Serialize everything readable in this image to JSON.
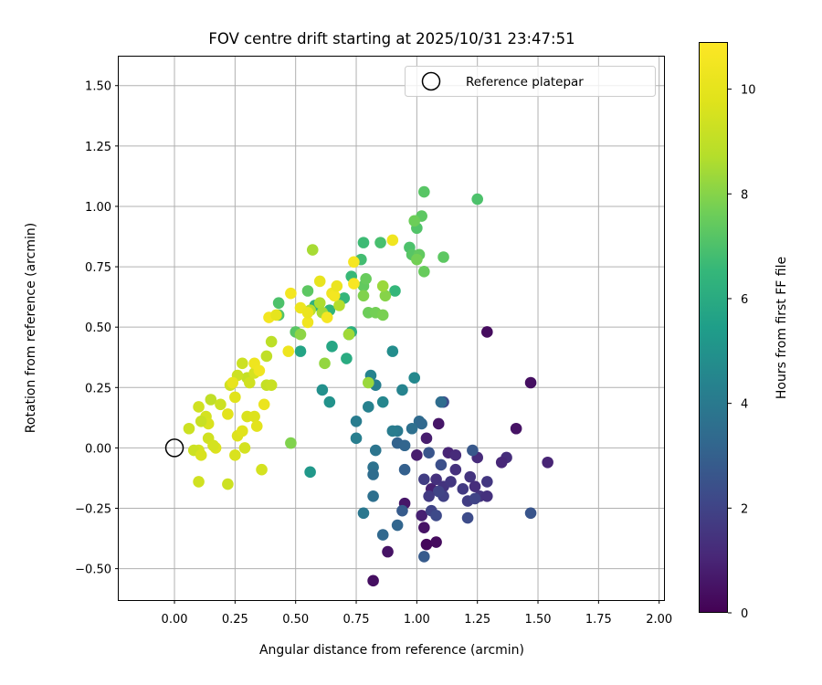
{
  "chart_data": {
    "type": "scatter",
    "title": "FOV centre drift starting at 2025/10/31 23:47:51",
    "xlabel": "Angular distance from reference (arcmin)",
    "ylabel": "Rotation from reference (arcmin)",
    "xlim": [
      -0.23,
      2.02
    ],
    "ylim": [
      -0.63,
      1.62
    ],
    "xticks": [
      0.0,
      0.25,
      0.5,
      0.75,
      1.0,
      1.25,
      1.5,
      1.75,
      2.0
    ],
    "xtick_labels": [
      "0.00",
      "0.25",
      "0.50",
      "0.75",
      "1.00",
      "1.25",
      "1.50",
      "1.75",
      "2.00"
    ],
    "yticks": [
      -0.5,
      -0.25,
      0.0,
      0.25,
      0.5,
      0.75,
      1.0,
      1.25,
      1.5
    ],
    "ytick_labels": [
      "−0.50",
      "−0.25",
      "0.00",
      "0.25",
      "0.50",
      "0.75",
      "1.00",
      "1.25",
      "1.50"
    ],
    "grid": true,
    "legend": {
      "label": "Reference platepar",
      "position": "top-right",
      "marker": "open-circle"
    },
    "reference_point": {
      "x": 0.0,
      "y": 0.0
    },
    "colorbar": {
      "label": "Hours from first FF file",
      "colormap": "viridis",
      "range": [
        0,
        10.9
      ],
      "ticks": [
        0,
        2,
        4,
        6,
        8,
        10
      ],
      "tick_labels": [
        "0",
        "2",
        "4",
        "6",
        "8",
        "10"
      ]
    },
    "points": [
      {
        "x": 1.04,
        "y": -0.4,
        "h": 0.2
      },
      {
        "x": 1.08,
        "y": -0.39,
        "h": 0.3
      },
      {
        "x": 0.82,
        "y": -0.55,
        "h": 0.4
      },
      {
        "x": 0.88,
        "y": -0.43,
        "h": 0.5
      },
      {
        "x": 1.03,
        "y": -0.33,
        "h": 0.5
      },
      {
        "x": 0.95,
        "y": -0.23,
        "h": 0.6
      },
      {
        "x": 1.29,
        "y": 0.48,
        "h": 0.3
      },
      {
        "x": 1.47,
        "y": 0.27,
        "h": 0.4
      },
      {
        "x": 1.41,
        "y": 0.08,
        "h": 0.5
      },
      {
        "x": 1.09,
        "y": 0.1,
        "h": 0.6
      },
      {
        "x": 1.04,
        "y": 0.04,
        "h": 0.8
      },
      {
        "x": 1.0,
        "y": -0.03,
        "h": 0.8
      },
      {
        "x": 1.06,
        "y": -0.17,
        "h": 0.9
      },
      {
        "x": 1.13,
        "y": -0.02,
        "h": 1.0
      },
      {
        "x": 1.16,
        "y": -0.03,
        "h": 1.2
      },
      {
        "x": 1.25,
        "y": -0.04,
        "h": 1.2
      },
      {
        "x": 1.37,
        "y": -0.04,
        "h": 1.3
      },
      {
        "x": 1.35,
        "y": -0.06,
        "h": 1.1
      },
      {
        "x": 1.54,
        "y": -0.06,
        "h": 1.0
      },
      {
        "x": 1.08,
        "y": -0.13,
        "h": 1.4
      },
      {
        "x": 1.11,
        "y": -0.16,
        "h": 1.5
      },
      {
        "x": 1.14,
        "y": -0.14,
        "h": 1.6
      },
      {
        "x": 1.16,
        "y": -0.09,
        "h": 1.4
      },
      {
        "x": 1.19,
        "y": -0.17,
        "h": 1.7
      },
      {
        "x": 1.22,
        "y": -0.12,
        "h": 1.5
      },
      {
        "x": 1.24,
        "y": -0.16,
        "h": 1.3
      },
      {
        "x": 1.26,
        "y": -0.2,
        "h": 1.5
      },
      {
        "x": 1.29,
        "y": -0.2,
        "h": 1.4
      },
      {
        "x": 1.29,
        "y": -0.14,
        "h": 1.6
      },
      {
        "x": 1.21,
        "y": -0.22,
        "h": 1.8
      },
      {
        "x": 1.11,
        "y": -0.2,
        "h": 1.9
      },
      {
        "x": 1.09,
        "y": -0.18,
        "h": 2.0
      },
      {
        "x": 1.05,
        "y": -0.2,
        "h": 1.7
      },
      {
        "x": 1.03,
        "y": -0.13,
        "h": 1.8
      },
      {
        "x": 1.02,
        "y": -0.28,
        "h": 0.9
      },
      {
        "x": 1.06,
        "y": -0.26,
        "h": 2.0
      },
      {
        "x": 1.08,
        "y": -0.28,
        "h": 2.2
      },
      {
        "x": 1.21,
        "y": -0.29,
        "h": 2.3
      },
      {
        "x": 1.24,
        "y": -0.21,
        "h": 2.0
      },
      {
        "x": 1.11,
        "y": 0.19,
        "h": 2.3
      },
      {
        "x": 1.1,
        "y": -0.07,
        "h": 2.4
      },
      {
        "x": 1.05,
        "y": -0.02,
        "h": 2.6
      },
      {
        "x": 1.23,
        "y": -0.01,
        "h": 2.7
      },
      {
        "x": 1.47,
        "y": -0.27,
        "h": 2.6
      },
      {
        "x": 1.03,
        "y": -0.45,
        "h": 2.8
      },
      {
        "x": 0.94,
        "y": -0.26,
        "h": 2.8
      },
      {
        "x": 0.95,
        "y": -0.09,
        "h": 3.0
      },
      {
        "x": 0.92,
        "y": 0.02,
        "h": 3.1
      },
      {
        "x": 0.95,
        "y": 0.01,
        "h": 3.2
      },
      {
        "x": 0.92,
        "y": -0.32,
        "h": 3.2
      },
      {
        "x": 0.86,
        "y": -0.36,
        "h": 3.3
      },
      {
        "x": 1.01,
        "y": 0.11,
        "h": 3.4
      },
      {
        "x": 1.02,
        "y": 0.1,
        "h": 3.3
      },
      {
        "x": 1.1,
        "y": 0.19,
        "h": 3.5
      },
      {
        "x": 0.98,
        "y": 0.08,
        "h": 3.6
      },
      {
        "x": 0.82,
        "y": -0.08,
        "h": 3.7
      },
      {
        "x": 0.82,
        "y": -0.11,
        "h": 3.5
      },
      {
        "x": 0.82,
        "y": -0.2,
        "h": 3.6
      },
      {
        "x": 0.83,
        "y": -0.01,
        "h": 3.8
      },
      {
        "x": 0.78,
        "y": -0.27,
        "h": 3.9
      },
      {
        "x": 0.92,
        "y": 0.07,
        "h": 4.0
      },
      {
        "x": 0.9,
        "y": 0.07,
        "h": 4.1
      },
      {
        "x": 0.75,
        "y": 0.04,
        "h": 4.2
      },
      {
        "x": 0.75,
        "y": 0.11,
        "h": 4.1
      },
      {
        "x": 0.8,
        "y": 0.17,
        "h": 4.3
      },
      {
        "x": 0.81,
        "y": 0.3,
        "h": 4.4
      },
      {
        "x": 0.83,
        "y": 0.26,
        "h": 4.2
      },
      {
        "x": 0.86,
        "y": 0.19,
        "h": 4.5
      },
      {
        "x": 0.94,
        "y": 0.24,
        "h": 4.4
      },
      {
        "x": 0.99,
        "y": 0.29,
        "h": 4.6
      },
      {
        "x": 0.9,
        "y": 0.4,
        "h": 4.8
      },
      {
        "x": 0.61,
        "y": 0.24,
        "h": 4.9
      },
      {
        "x": 0.64,
        "y": 0.19,
        "h": 5.0
      },
      {
        "x": 0.56,
        "y": -0.1,
        "h": 5.2
      },
      {
        "x": 0.52,
        "y": 0.4,
        "h": 5.7
      },
      {
        "x": 0.65,
        "y": 0.42,
        "h": 5.8
      },
      {
        "x": 0.72,
        "y": 0.47,
        "h": 5.9
      },
      {
        "x": 0.71,
        "y": 0.37,
        "h": 6.0
      },
      {
        "x": 0.73,
        "y": 0.48,
        "h": 6.2
      },
      {
        "x": 0.58,
        "y": 0.59,
        "h": 6.3
      },
      {
        "x": 0.64,
        "y": 0.57,
        "h": 6.4
      },
      {
        "x": 0.7,
        "y": 0.62,
        "h": 6.5
      },
      {
        "x": 0.73,
        "y": 0.71,
        "h": 6.6
      },
      {
        "x": 0.77,
        "y": 0.78,
        "h": 6.8
      },
      {
        "x": 0.78,
        "y": 0.85,
        "h": 6.7
      },
      {
        "x": 0.85,
        "y": 0.85,
        "h": 6.9
      },
      {
        "x": 0.91,
        "y": 0.65,
        "h": 6.5
      },
      {
        "x": 0.97,
        "y": 0.83,
        "h": 7.0
      },
      {
        "x": 0.98,
        "y": 0.8,
        "h": 7.2
      },
      {
        "x": 1.0,
        "y": 0.91,
        "h": 7.1
      },
      {
        "x": 1.02,
        "y": 0.96,
        "h": 7.3
      },
      {
        "x": 1.01,
        "y": 0.8,
        "h": 7.4
      },
      {
        "x": 1.03,
        "y": 0.73,
        "h": 7.5
      },
      {
        "x": 1.03,
        "y": 1.06,
        "h": 7.2
      },
      {
        "x": 0.99,
        "y": 0.94,
        "h": 7.6
      },
      {
        "x": 1.25,
        "y": 1.03,
        "h": 7.0
      },
      {
        "x": 1.11,
        "y": 0.79,
        "h": 7.3
      },
      {
        "x": 1.0,
        "y": 0.78,
        "h": 7.7
      },
      {
        "x": 0.43,
        "y": 0.6,
        "h": 7.0
      },
      {
        "x": 0.43,
        "y": 0.55,
        "h": 7.1
      },
      {
        "x": 0.5,
        "y": 0.48,
        "h": 7.2
      },
      {
        "x": 0.55,
        "y": 0.65,
        "h": 7.3
      },
      {
        "x": 0.78,
        "y": 0.67,
        "h": 7.4
      },
      {
        "x": 0.79,
        "y": 0.7,
        "h": 7.5
      },
      {
        "x": 0.8,
        "y": 0.56,
        "h": 7.6
      },
      {
        "x": 0.83,
        "y": 0.56,
        "h": 7.7
      },
      {
        "x": 0.86,
        "y": 0.55,
        "h": 7.8
      },
      {
        "x": 0.78,
        "y": 0.63,
        "h": 7.9
      },
      {
        "x": 0.87,
        "y": 0.63,
        "h": 8.0
      },
      {
        "x": 0.86,
        "y": 0.67,
        "h": 8.3
      },
      {
        "x": 0.48,
        "y": 0.02,
        "h": 7.9
      },
      {
        "x": 0.52,
        "y": 0.47,
        "h": 8.1
      },
      {
        "x": 0.62,
        "y": 0.35,
        "h": 8.2
      },
      {
        "x": 0.72,
        "y": 0.47,
        "h": 8.4
      },
      {
        "x": 0.8,
        "y": 0.27,
        "h": 8.3
      },
      {
        "x": 0.57,
        "y": 0.82,
        "h": 8.5
      },
      {
        "x": 0.6,
        "y": 0.6,
        "h": 8.6
      },
      {
        "x": 0.61,
        "y": 0.56,
        "h": 8.5
      },
      {
        "x": 0.68,
        "y": 0.59,
        "h": 8.7
      },
      {
        "x": 0.56,
        "y": 0.57,
        "h": 8.8
      },
      {
        "x": 0.38,
        "y": 0.38,
        "h": 9.0
      },
      {
        "x": 0.4,
        "y": 0.44,
        "h": 8.9
      },
      {
        "x": 0.38,
        "y": 0.26,
        "h": 9.1
      },
      {
        "x": 0.4,
        "y": 0.26,
        "h": 9.2
      },
      {
        "x": 0.28,
        "y": 0.35,
        "h": 9.3
      },
      {
        "x": 0.3,
        "y": 0.29,
        "h": 9.1
      },
      {
        "x": 0.31,
        "y": 0.27,
        "h": 9.4
      },
      {
        "x": 0.33,
        "y": 0.31,
        "h": 9.5
      },
      {
        "x": 0.26,
        "y": 0.3,
        "h": 9.3
      },
      {
        "x": 0.23,
        "y": 0.26,
        "h": 9.4
      },
      {
        "x": 0.15,
        "y": 0.2,
        "h": 9.0
      },
      {
        "x": 0.19,
        "y": 0.18,
        "h": 9.3
      },
      {
        "x": 0.1,
        "y": 0.17,
        "h": 9.4
      },
      {
        "x": 0.13,
        "y": 0.13,
        "h": 9.5
      },
      {
        "x": 0.14,
        "y": 0.1,
        "h": 9.6
      },
      {
        "x": 0.11,
        "y": 0.11,
        "h": 9.2
      },
      {
        "x": 0.06,
        "y": 0.08,
        "h": 9.3
      },
      {
        "x": 0.14,
        "y": 0.04,
        "h": 9.4
      },
      {
        "x": 0.1,
        "y": -0.01,
        "h": 9.5
      },
      {
        "x": 0.08,
        "y": -0.01,
        "h": 9.3
      },
      {
        "x": 0.11,
        "y": -0.03,
        "h": 9.6
      },
      {
        "x": 0.17,
        "y": 0.0,
        "h": 9.7
      },
      {
        "x": 0.16,
        "y": 0.01,
        "h": 9.5
      },
      {
        "x": 0.1,
        "y": -0.14,
        "h": 9.4
      },
      {
        "x": 0.22,
        "y": -0.15,
        "h": 9.3
      },
      {
        "x": 0.25,
        "y": -0.03,
        "h": 9.6
      },
      {
        "x": 0.26,
        "y": 0.05,
        "h": 9.7
      },
      {
        "x": 0.29,
        "y": 0.0,
        "h": 9.5
      },
      {
        "x": 0.28,
        "y": 0.07,
        "h": 9.8
      },
      {
        "x": 0.3,
        "y": 0.13,
        "h": 9.6
      },
      {
        "x": 0.33,
        "y": 0.13,
        "h": 9.7
      },
      {
        "x": 0.34,
        "y": 0.09,
        "h": 9.9
      },
      {
        "x": 0.36,
        "y": -0.09,
        "h": 9.5
      },
      {
        "x": 0.25,
        "y": 0.21,
        "h": 9.8
      },
      {
        "x": 0.22,
        "y": 0.14,
        "h": 9.9
      },
      {
        "x": 0.24,
        "y": 0.27,
        "h": 10.1
      },
      {
        "x": 0.33,
        "y": 0.35,
        "h": 10.3
      },
      {
        "x": 0.35,
        "y": 0.32,
        "h": 10.4
      },
      {
        "x": 0.37,
        "y": 0.18,
        "h": 10.2
      },
      {
        "x": 0.39,
        "y": 0.54,
        "h": 10.5
      },
      {
        "x": 0.42,
        "y": 0.55,
        "h": 10.0
      },
      {
        "x": 0.47,
        "y": 0.4,
        "h": 10.3
      },
      {
        "x": 0.48,
        "y": 0.64,
        "h": 10.5
      },
      {
        "x": 0.52,
        "y": 0.58,
        "h": 10.3
      },
      {
        "x": 0.55,
        "y": 0.52,
        "h": 10.4
      },
      {
        "x": 0.55,
        "y": 0.56,
        "h": 10.2
      },
      {
        "x": 0.6,
        "y": 0.69,
        "h": 10.1
      },
      {
        "x": 0.63,
        "y": 0.54,
        "h": 10.6
      },
      {
        "x": 0.65,
        "y": 0.64,
        "h": 10.4
      },
      {
        "x": 0.66,
        "y": 0.63,
        "h": 10.5
      },
      {
        "x": 0.67,
        "y": 0.67,
        "h": 10.2
      },
      {
        "x": 0.74,
        "y": 0.68,
        "h": 10.7
      },
      {
        "x": 0.74,
        "y": 0.77,
        "h": 10.6
      },
      {
        "x": 0.9,
        "y": 0.86,
        "h": 10.4
      }
    ]
  }
}
